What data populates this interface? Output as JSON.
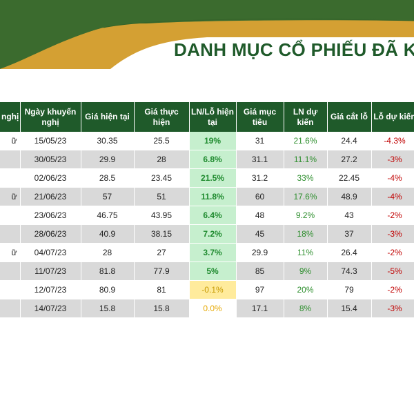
{
  "title": "DANH MỤC CỔ PHIẾU ĐÃ K",
  "colors": {
    "dark_green": "#1f5a2a",
    "mid_green": "#3b6b2e",
    "gold": "#d4a033",
    "positive_bg": "#c6efce",
    "negative_bg": "#ffeb9c",
    "loss_text": "#c00000"
  },
  "headers": [
    "nghị",
    "Ngày khuyến nghị",
    "Giá hiện tại",
    "Giá thực hiện",
    "LN/Lỗ hiện tại",
    "Giá mục tiêu",
    "LN dự kiến",
    "Giá cắt lỗ",
    "Lỗ dự kiến"
  ],
  "rows": [
    [
      "ữ",
      "15/05/23",
      "30.35",
      "25.5",
      "19%",
      "31",
      "21.6%",
      "24.4",
      "-4.3%"
    ],
    [
      "",
      "30/05/23",
      "29.9",
      "28",
      "6.8%",
      "31.1",
      "11.1%",
      "27.2",
      "-3%"
    ],
    [
      "",
      "02/06/23",
      "28.5",
      "23.45",
      "21.5%",
      "31.2",
      "33%",
      "22.45",
      "-4%"
    ],
    [
      "ữ",
      "21/06/23",
      "57",
      "51",
      "11.8%",
      "60",
      "17.6%",
      "48.9",
      "-4%"
    ],
    [
      "",
      "23/06/23",
      "46.75",
      "43.95",
      "6.4%",
      "48",
      "9.2%",
      "43",
      "-2%"
    ],
    [
      "",
      "28/06/23",
      "40.9",
      "38.15",
      "7.2%",
      "45",
      "18%",
      "37",
      "-3%"
    ],
    [
      "ữ",
      "04/07/23",
      "28",
      "27",
      "3.7%",
      "29.9",
      "11%",
      "26.4",
      "-2%"
    ],
    [
      "",
      "11/07/23",
      "81.8",
      "77.9",
      "5%",
      "85",
      "9%",
      "74.3",
      "-5%"
    ],
    [
      "",
      "12/07/23",
      "80.9",
      "81",
      "-0.1%",
      "97",
      "20%",
      "79",
      "-2%"
    ],
    [
      "",
      "14/07/23",
      "15.8",
      "15.8",
      "0.0%",
      "17.1",
      "8%",
      "15.4",
      "-3%"
    ]
  ]
}
